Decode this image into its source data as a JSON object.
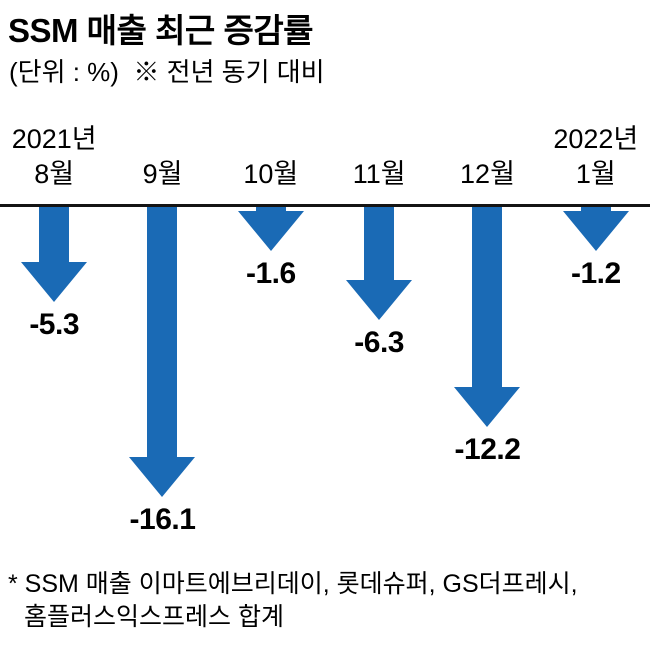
{
  "header": {
    "title": "SSM 매출 최근 증감률",
    "subtitle": "(단위 : %)  ※ 전년 동기 대비"
  },
  "chart_data": {
    "type": "bar",
    "subtype": "downward-arrow-bars",
    "title": "SSM 매출 최근 증감률",
    "unit": "%",
    "comparison_note": "전년 동기 대비",
    "categories": [
      "2021년 8월",
      "9월",
      "10월",
      "11월",
      "12월",
      "2022년 1월"
    ],
    "month_labels": [
      "8월",
      "9월",
      "10월",
      "11월",
      "12월",
      "1월"
    ],
    "year_labels": [
      "2021년",
      "",
      "",
      "",
      "",
      "2022년"
    ],
    "values": [
      -5.3,
      -16.1,
      -1.6,
      -6.3,
      -12.2,
      -1.2
    ],
    "value_labels": [
      "-5.3",
      "-16.1",
      "-1.6",
      "-6.3",
      "-12.2",
      "-1.2"
    ],
    "arrow_color": "#1a6ab5",
    "baseline_value": 0,
    "legend": "none",
    "grid": false
  },
  "footnote": {
    "line1": "* SSM 매출 이마트에브리데이, 롯데슈퍼, GS더프레시,",
    "line2": "홈플러스익스프레스 합계"
  }
}
